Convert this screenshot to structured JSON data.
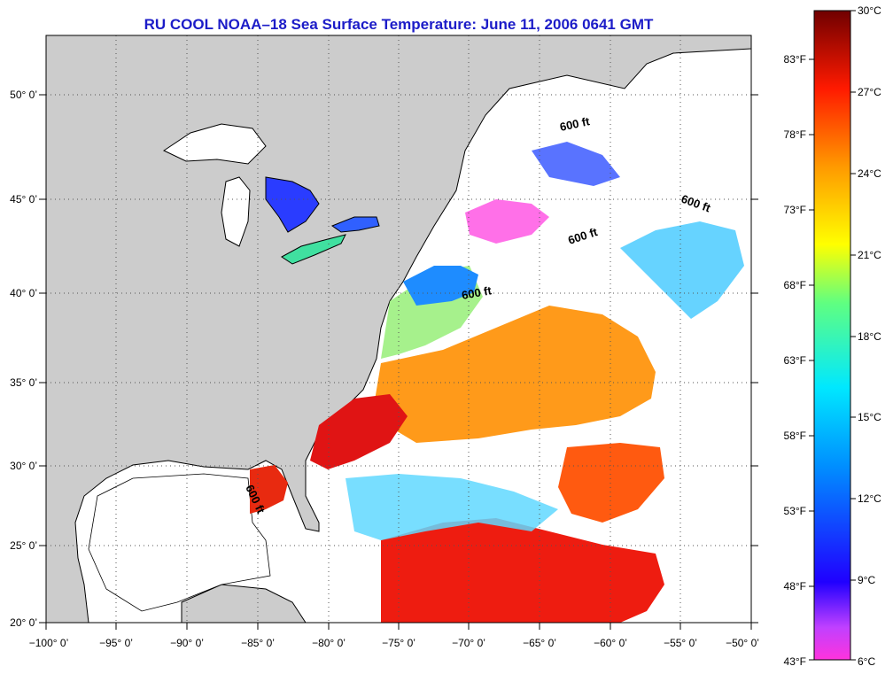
{
  "title": "RU COOL  NOAA–18  Sea Surface Temperature:  June 11, 2006 0641 GMT",
  "lon_ticks": [
    "−100° 0’",
    "−95° 0’",
    "−90° 0’",
    "−85° 0’",
    "−80° 0’",
    "−75° 0’",
    "−70° 0’",
    "−65° 0’",
    "−60° 0’",
    "−55° 0’",
    "−50° 0’"
  ],
  "lat_ticks": [
    "20° 0’",
    "25° 0’",
    "30° 0’",
    "35° 0’",
    "40° 0’",
    "45° 0’",
    "50° 0’"
  ],
  "contour_labels": [
    "600 ft",
    "600 ft",
    "600 ft",
    "600 ft",
    "600 ft"
  ],
  "colorbar": {
    "celsius": [
      "30°C",
      "27°C",
      "24°C",
      "21°C",
      "18°C",
      "15°C",
      "12°C",
      "9°C",
      "6°C"
    ],
    "fahrenheit": [
      "83°F",
      "78°F",
      "73°F",
      "68°F",
      "63°F",
      "58°F",
      "53°F",
      "48°F",
      "43°F"
    ]
  },
  "colors": {
    "title": "#1c1cc8",
    "land": "#cccccc",
    "cloud": "#ffffff",
    "scale": [
      "#800000",
      "#ff0000",
      "#ff8000",
      "#ffff00",
      "#40ff80",
      "#00e0ff",
      "#0040ff",
      "#0000ff",
      "#ff00ff"
    ]
  }
}
